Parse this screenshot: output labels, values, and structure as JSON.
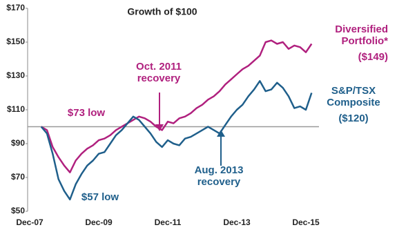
{
  "chart_data": {
    "type": "line",
    "title": "Growth of $100",
    "categories": [
      "Dec-07",
      null,
      null,
      null,
      null,
      null,
      null,
      null,
      null,
      null,
      null,
      null,
      "Dec-09",
      null,
      null,
      null,
      null,
      null,
      null,
      null,
      null,
      null,
      null,
      null,
      "Dec-11",
      null,
      null,
      null,
      null,
      null,
      null,
      null,
      null,
      null,
      null,
      null,
      "Dec-13",
      null,
      null,
      null,
      null,
      null,
      null,
      null,
      null,
      null,
      null,
      null,
      "Dec-15",
      null
    ],
    "series": [
      {
        "name": "Diversified Portfolio*",
        "end_label": "($149)",
        "color": "#b0207e",
        "values": [
          null,
          null,
          100,
          98,
          88,
          82,
          77,
          73,
          80,
          84,
          87,
          89,
          92,
          93,
          95,
          98,
          100,
          102,
          104,
          106,
          105,
          103,
          100,
          98,
          103,
          102,
          105,
          106,
          108,
          111,
          113,
          116,
          118,
          121,
          125,
          128,
          131,
          134,
          136,
          139,
          142,
          150,
          151,
          149,
          150,
          146,
          148,
          147,
          144,
          149
        ]
      },
      {
        "name": "S&P/TSX Composite",
        "end_label": "($120)",
        "color": "#1f5f8b",
        "values": [
          null,
          null,
          100,
          96,
          84,
          69,
          62,
          57,
          66,
          72,
          77,
          80,
          84,
          85,
          90,
          95,
          98,
          102,
          106,
          104,
          100,
          96,
          91,
          88,
          92,
          90,
          89,
          93,
          94,
          96,
          98,
          100,
          98,
          96,
          101,
          106,
          110,
          113,
          118,
          122,
          127,
          121,
          122,
          126,
          123,
          118,
          111,
          112,
          110,
          120
        ]
      }
    ],
    "annotations": [
      "$73 low",
      "Oct. 2011 recovery",
      "$57 low",
      "Aug. 2013 recovery"
    ],
    "reference_line": 100,
    "ylim": [
      50,
      170
    ],
    "yticks": [
      {
        "value": 50,
        "label": "$50"
      },
      {
        "value": 70,
        "label": "$70"
      },
      {
        "value": 90,
        "label": "$90"
      },
      {
        "value": 110,
        "label": "$110"
      },
      {
        "value": 130,
        "label": "$130"
      },
      {
        "value": 150,
        "label": "$150"
      },
      {
        "value": 170,
        "label": "$170"
      }
    ]
  }
}
